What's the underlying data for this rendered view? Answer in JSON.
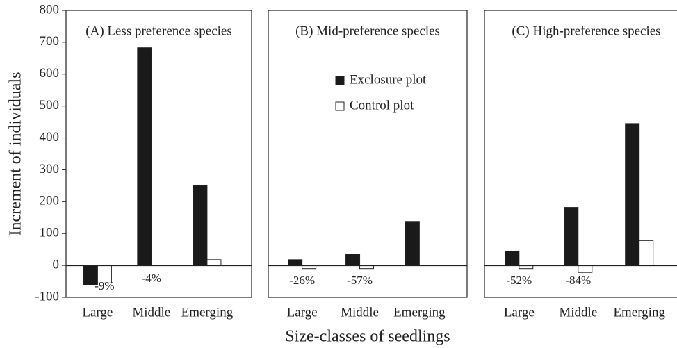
{
  "chart_data": [
    {
      "type": "bar",
      "title": "(A) Less preference species",
      "ylabel": "Increment of individuals",
      "categories": [
        "Large",
        "Middle",
        "Emerging"
      ],
      "series": [
        {
          "name": "Exclosure plot",
          "color": "#1a1a1a",
          "values": [
            -60,
            683,
            250
          ]
        },
        {
          "name": "Control plot",
          "color": "#ffffff",
          "values": [
            -55,
            0,
            18
          ]
        }
      ],
      "annotations": [
        {
          "text": "-9%",
          "category": "Large"
        },
        {
          "text": "-4%",
          "category": "Middle"
        }
      ],
      "ylim": [
        -100,
        800
      ],
      "yticks": [
        -100,
        0,
        100,
        200,
        300,
        400,
        500,
        600,
        700,
        800
      ]
    },
    {
      "type": "bar",
      "title": "(B) Mid-preference species",
      "xlabel": "Size-classes of seedlings",
      "categories": [
        "Large",
        "Middle",
        "Emerging"
      ],
      "series": [
        {
          "name": "Exclosure plot",
          "color": "#1a1a1a",
          "values": [
            18,
            35,
            138
          ]
        },
        {
          "name": "Control plot",
          "color": "#ffffff",
          "values": [
            -10,
            -10,
            0
          ]
        }
      ],
      "annotations": [
        {
          "text": "-26%",
          "category": "Large"
        },
        {
          "text": "-57%",
          "category": "Middle"
        }
      ],
      "legend": "upper center",
      "ylim": [
        -100,
        800
      ]
    },
    {
      "type": "bar",
      "title": "(C) High-preference species",
      "categories": [
        "Large",
        "Middle",
        "Emerging"
      ],
      "series": [
        {
          "name": "Exclosure plot",
          "color": "#1a1a1a",
          "values": [
            45,
            182,
            445
          ]
        },
        {
          "name": "Control plot",
          "color": "#ffffff",
          "values": [
            -10,
            -22,
            78
          ]
        }
      ],
      "annotations": [
        {
          "text": "-52%",
          "category": "Large"
        },
        {
          "text": "-84%",
          "category": "Middle"
        }
      ],
      "ylim": [
        -100,
        800
      ]
    }
  ]
}
